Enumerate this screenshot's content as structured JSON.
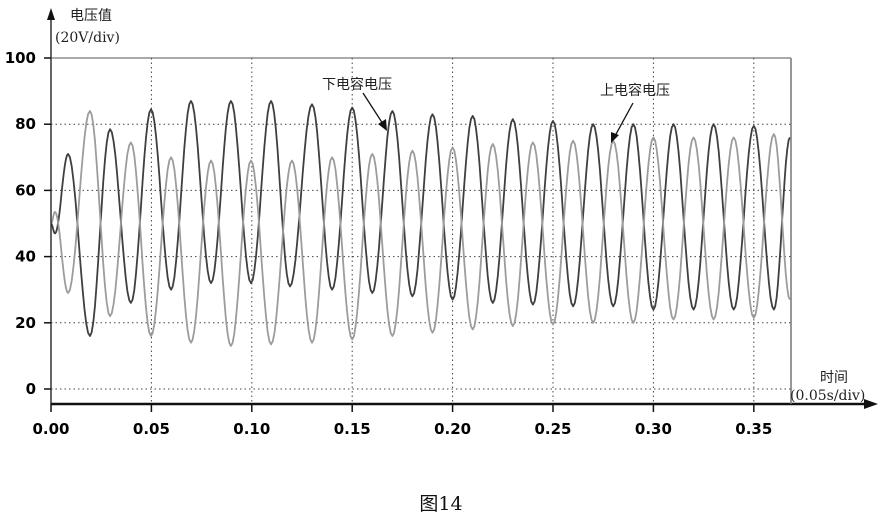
{
  "chart_data": {
    "type": "line",
    "caption": "图14",
    "ylabel": "电压值",
    "ylabel_unit": "(20V/div)",
    "xlabel": "时间",
    "xlabel_unit": "(0.05s/div)",
    "xlim": [
      0,
      0.368
    ],
    "ylim": [
      -4.5,
      100
    ],
    "xticks": [
      "0.00",
      "0.05",
      "0.10",
      "0.15",
      "0.20",
      "0.25",
      "0.30",
      "0.35"
    ],
    "xtick_values": [
      0,
      0.05,
      0.1,
      0.15,
      0.2,
      0.25,
      0.3,
      0.35
    ],
    "yticks": [
      "0",
      "20",
      "40",
      "60",
      "80",
      "100"
    ],
    "ytick_values": [
      0,
      20,
      40,
      60,
      80,
      100
    ],
    "grid": true,
    "series": [
      {
        "name": "下电容电压",
        "color": "#3f3f3f",
        "extrema": [
          [
            0,
            50
          ],
          [
            0.002,
            47
          ],
          [
            0.0085,
            71
          ],
          [
            0.0194,
            16
          ],
          [
            0.0294,
            78.5
          ],
          [
            0.0398,
            26
          ],
          [
            0.0498,
            84.5
          ],
          [
            0.0598,
            30
          ],
          [
            0.0697,
            87
          ],
          [
            0.0797,
            32
          ],
          [
            0.0896,
            87
          ],
          [
            0.0996,
            32
          ],
          [
            0.1096,
            87
          ],
          [
            0.119,
            31
          ],
          [
            0.13,
            86
          ],
          [
            0.14,
            30
          ],
          [
            0.15,
            85
          ],
          [
            0.16,
            29
          ],
          [
            0.17,
            84
          ],
          [
            0.18,
            28
          ],
          [
            0.19,
            83
          ],
          [
            0.2,
            27
          ],
          [
            0.21,
            82.5
          ],
          [
            0.22,
            26
          ],
          [
            0.23,
            81.5
          ],
          [
            0.24,
            25.5
          ],
          [
            0.25,
            81
          ],
          [
            0.26,
            25
          ],
          [
            0.27,
            80
          ],
          [
            0.28,
            25
          ],
          [
            0.29,
            80
          ],
          [
            0.3,
            24
          ],
          [
            0.31,
            80
          ],
          [
            0.32,
            24
          ],
          [
            0.33,
            80
          ],
          [
            0.34,
            24
          ],
          [
            0.35,
            79.5
          ],
          [
            0.36,
            24
          ],
          [
            0.368,
            76
          ]
        ]
      },
      {
        "name": "上电容电压",
        "color": "#9c9c9c",
        "extrema": [
          [
            0,
            50
          ],
          [
            0.002,
            53.5
          ],
          [
            0.0085,
            29
          ],
          [
            0.0194,
            84
          ],
          [
            0.0294,
            22
          ],
          [
            0.0398,
            74.5
          ],
          [
            0.0498,
            16
          ],
          [
            0.0598,
            70
          ],
          [
            0.0697,
            14
          ],
          [
            0.0797,
            69
          ],
          [
            0.0896,
            13
          ],
          [
            0.0996,
            69
          ],
          [
            0.1096,
            13.5
          ],
          [
            0.12,
            69
          ],
          [
            0.13,
            14
          ],
          [
            0.14,
            70
          ],
          [
            0.15,
            15
          ],
          [
            0.16,
            71
          ],
          [
            0.17,
            16
          ],
          [
            0.18,
            72
          ],
          [
            0.19,
            17
          ],
          [
            0.2,
            73
          ],
          [
            0.21,
            18
          ],
          [
            0.22,
            74
          ],
          [
            0.23,
            19
          ],
          [
            0.24,
            74.5
          ],
          [
            0.25,
            19.5
          ],
          [
            0.26,
            75
          ],
          [
            0.27,
            20
          ],
          [
            0.28,
            75
          ],
          [
            0.29,
            20
          ],
          [
            0.3,
            76
          ],
          [
            0.31,
            21
          ],
          [
            0.32,
            76
          ],
          [
            0.33,
            21
          ],
          [
            0.34,
            76
          ],
          [
            0.35,
            21.5
          ],
          [
            0.36,
            77
          ],
          [
            0.368,
            27
          ]
        ]
      }
    ],
    "annotations": [
      "下电容电压",
      "上电容电压"
    ]
  }
}
